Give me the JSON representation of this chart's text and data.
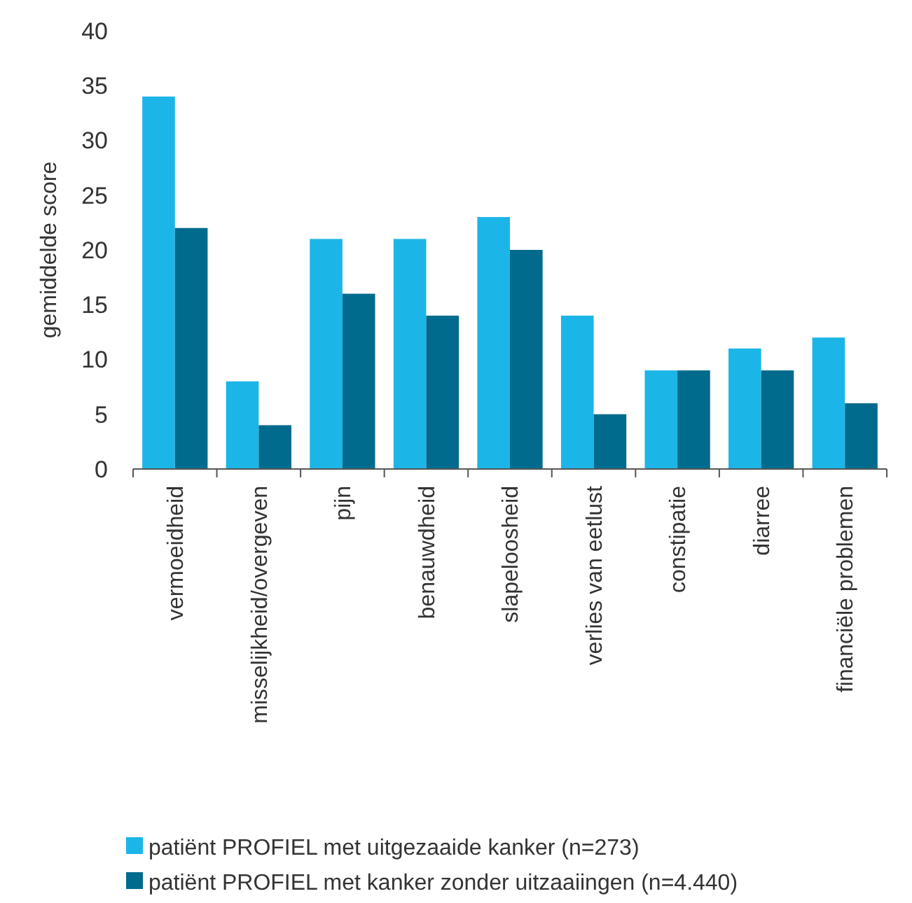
{
  "chart_data": {
    "type": "bar",
    "ylabel": "gemiddelde score",
    "categories": [
      "vermoeidheid",
      "misselijkheid/overgeven",
      "pijn",
      "benauwdheid",
      "slapeloosheid",
      "verlies van eetlust",
      "constipatie",
      "diarree",
      "financiële problemen"
    ],
    "series": [
      {
        "name": "patiënt PROFIEL met uitgezaaide kanker (n=273)",
        "color": "#1cb5e8",
        "values": [
          34,
          8,
          21,
          21,
          23,
          14,
          9,
          11,
          12
        ]
      },
      {
        "name": "patiënt PROFIEL met kanker zonder uitzaaiingen (n=4.440)",
        "color": "#006b8c",
        "values": [
          22,
          4,
          16,
          14,
          20,
          5,
          9,
          9,
          6
        ]
      }
    ],
    "ylim": [
      0,
      40
    ],
    "yticks": [
      0,
      5,
      10,
      15,
      20,
      25,
      30,
      35,
      40
    ],
    "grid": false,
    "legend": "bottom"
  }
}
